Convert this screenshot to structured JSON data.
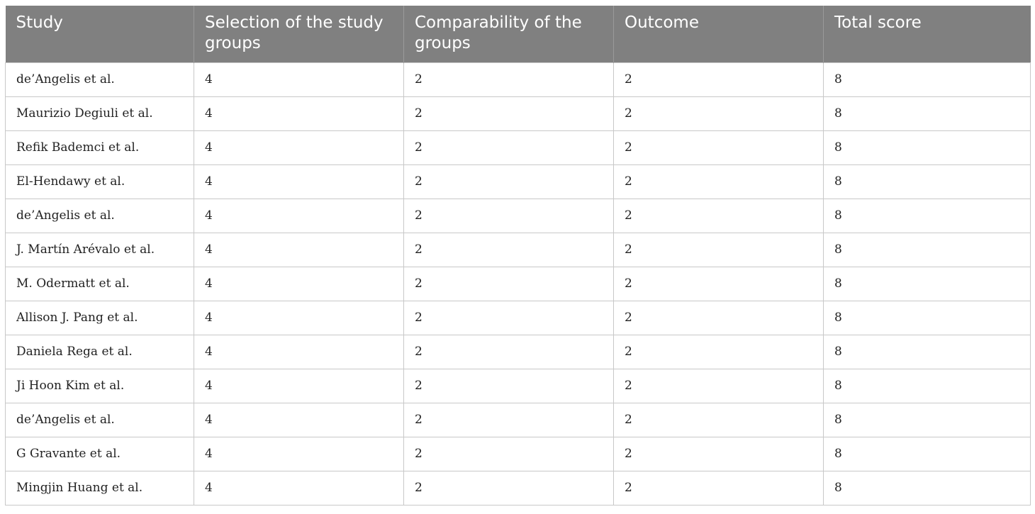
{
  "table": {
    "headers": [
      "Study",
      "Selection of the study groups",
      "Comparability of the groups",
      "Outcome",
      "Total score"
    ],
    "rows": [
      [
        "de’Angelis et al.",
        "4",
        "2",
        "2",
        "8"
      ],
      [
        "Maurizio Degiuli et al.",
        "4",
        "2",
        "2",
        "8"
      ],
      [
        "Refik Bademci et al.",
        "4",
        "2",
        "2",
        "8"
      ],
      [
        "El-Hendawy et al.",
        "4",
        "2",
        "2",
        "8"
      ],
      [
        "de’Angelis et al.",
        "4",
        "2",
        "2",
        "8"
      ],
      [
        "J. Martín Arévalo et al.",
        "4",
        "2",
        "2",
        "8"
      ],
      [
        "M. Odermatt et al.",
        "4",
        "2",
        "2",
        "8"
      ],
      [
        "Allison J. Pang et al.",
        "4",
        "2",
        "2",
        "8"
      ],
      [
        "Daniela Rega et al.",
        "4",
        "2",
        "2",
        "8"
      ],
      [
        "Ji Hoon Kim et al.",
        "4",
        "2",
        "2",
        "8"
      ],
      [
        "de’Angelis et al.",
        "4",
        "2",
        "2",
        "8"
      ],
      [
        "G Gravante et al.",
        "4",
        "2",
        "2",
        "8"
      ],
      [
        "Mingjin Huang et al.",
        "4",
        "2",
        "2",
        "8"
      ]
    ]
  },
  "colors": {
    "header_background": "#808080",
    "header_text": "#ffffff",
    "grid_lines": "#c8c8c8"
  }
}
